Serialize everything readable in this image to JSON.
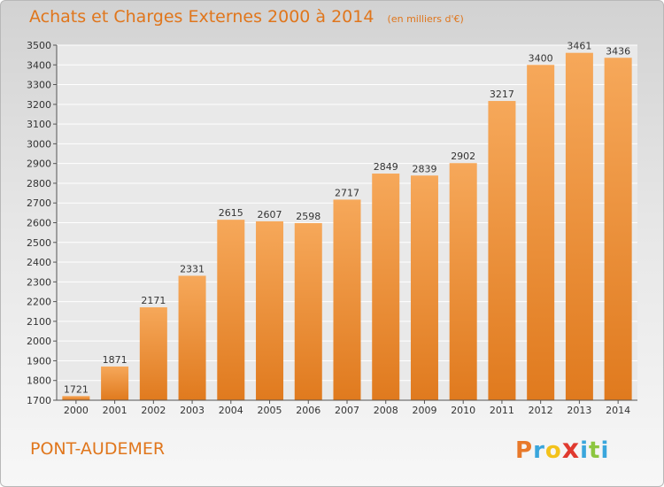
{
  "chart_data": {
    "type": "bar",
    "title": "Achats et Charges Externes 2000 à 2014",
    "unit_note": "(en milliers d'€)",
    "categories": [
      "2000",
      "2001",
      "2002",
      "2003",
      "2004",
      "2005",
      "2006",
      "2007",
      "2008",
      "2009",
      "2010",
      "2011",
      "2012",
      "2013",
      "2014"
    ],
    "values": [
      1721,
      1871,
      2171,
      2331,
      2615,
      2607,
      2598,
      2717,
      2849,
      2839,
      2902,
      3217,
      3400,
      3461,
      3436
    ],
    "ylim": [
      1700,
      3500
    ],
    "yticks": [
      1700,
      1800,
      1900,
      2000,
      2100,
      2200,
      2300,
      2400,
      2500,
      2600,
      2700,
      2800,
      2900,
      3000,
      3100,
      3200,
      3300,
      3400,
      3500
    ],
    "grid": true,
    "bar_color_top": "#f6a85a",
    "bar_color_bottom": "#e07a1e"
  },
  "footer": {
    "place": "PONT-AUDEMER",
    "logo_letters": [
      "P",
      "r",
      "o",
      "x",
      "i",
      "t",
      "i"
    ],
    "logo_colors": [
      "#e8792a",
      "#3aa6dc",
      "#f3c21b",
      "#e03a2f",
      "#3aa6dc",
      "#8cc63f",
      "#3aa6dc"
    ]
  },
  "colors": {
    "accent": "#e0761c"
  }
}
